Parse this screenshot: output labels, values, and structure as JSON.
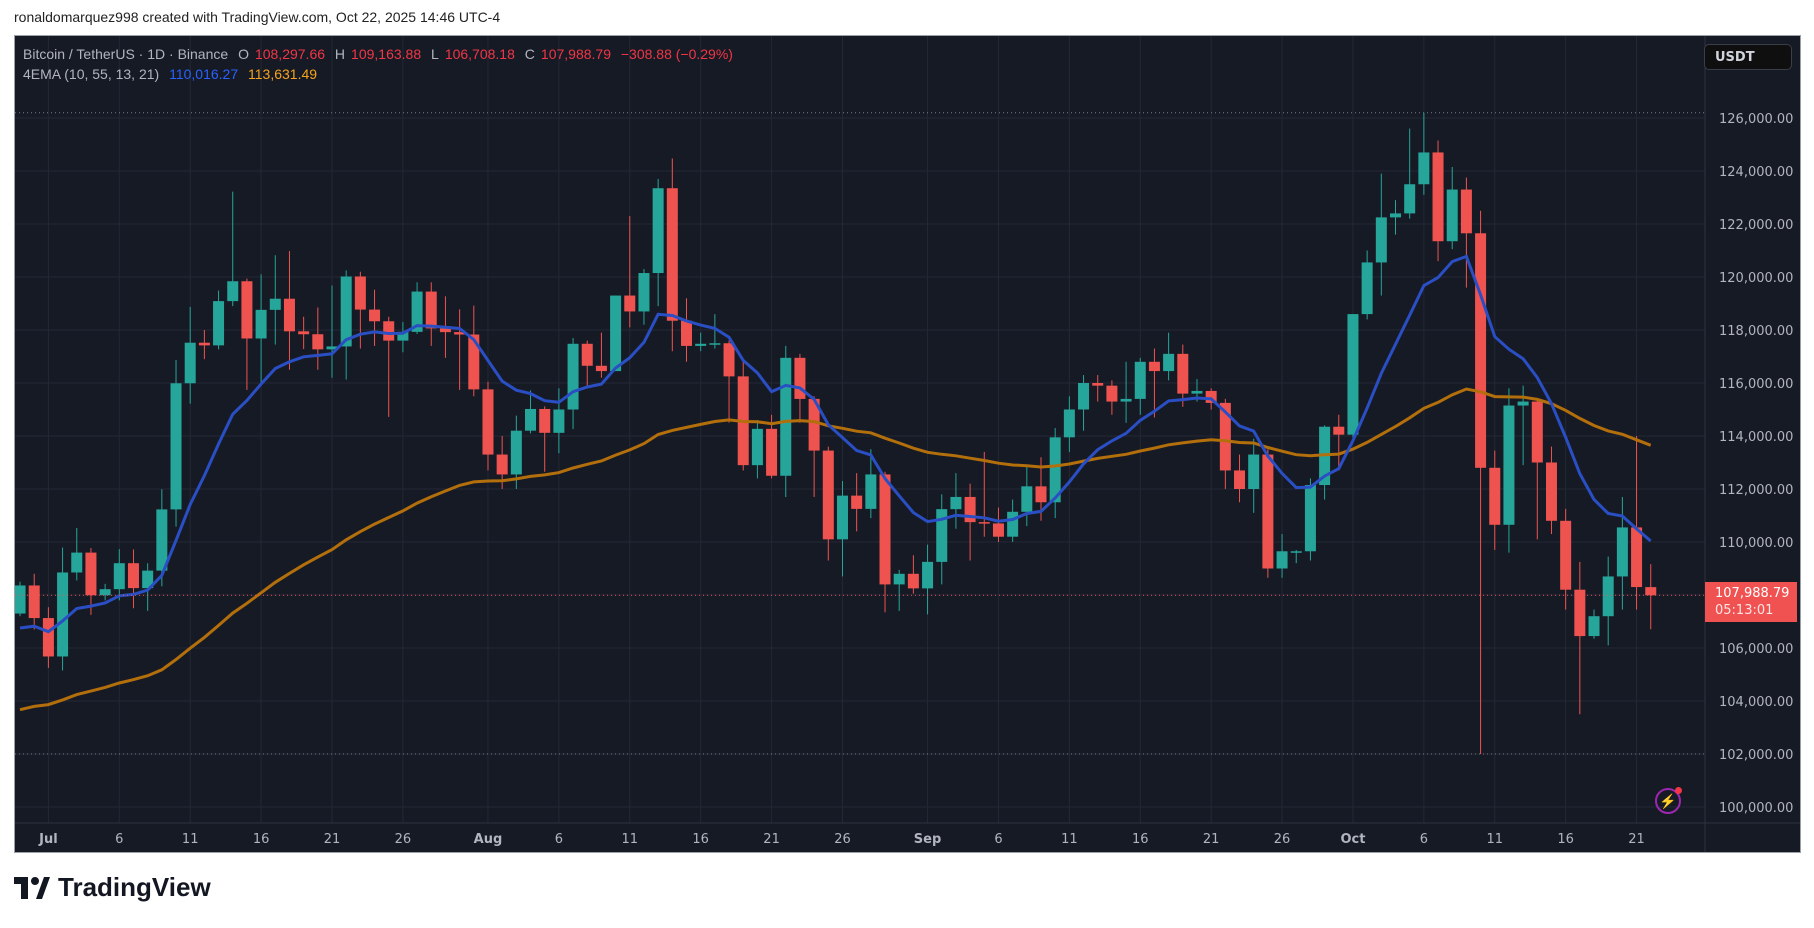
{
  "credit": "ronaldomarquez998 created with TradingView.com, Oct 22, 2025 14:46 UTC-4",
  "legend": {
    "symbol": "Bitcoin / TetherUS · 1D · Binance",
    "o_label": "O",
    "o": "108,297.66",
    "h_label": "H",
    "h": "109,163.88",
    "l_label": "L",
    "l": "106,708.18",
    "c_label": "C",
    "c": "107,988.79",
    "change": "−308.88 (−0.29%)",
    "indicator": "4EMA (10, 55, 13, 21)",
    "ema_fast": "110,016.27",
    "ema_slow": "113,631.49"
  },
  "currency_button": "USDT",
  "last_price": {
    "price": "107,988.79",
    "countdown": "05:13:01"
  },
  "brand": "TradingView",
  "colors": {
    "up": "#26a69a",
    "down": "#ef5350",
    "ema_fast": "#2a4fc4",
    "ema_slow": "#b36f0b",
    "bg": "#161a25"
  },
  "chart_data": {
    "type": "candlestick",
    "title": "Bitcoin / TetherUS · 1D · Binance",
    "ylim": [
      99500,
      127200
    ],
    "y_ticks": [
      "126,000.00",
      "124,000.00",
      "122,000.00",
      "120,000.00",
      "118,000.00",
      "116,000.00",
      "114,000.00",
      "112,000.00",
      "110,000.00",
      "108,000.00",
      "106,000.00",
      "104,000.00",
      "102,000.00",
      "100,000.00"
    ],
    "y_tick_values": [
      126000,
      124000,
      122000,
      120000,
      118000,
      116000,
      114000,
      112000,
      110000,
      108000,
      106000,
      104000,
      102000,
      100000
    ],
    "x_ticks": [
      {
        "label": "Jul",
        "day": 2,
        "bold": true
      },
      {
        "label": "6",
        "day": 7
      },
      {
        "label": "11",
        "day": 12
      },
      {
        "label": "16",
        "day": 17
      },
      {
        "label": "21",
        "day": 22
      },
      {
        "label": "26",
        "day": 27
      },
      {
        "label": "Aug",
        "day": 33,
        "bold": true
      },
      {
        "label": "6",
        "day": 38
      },
      {
        "label": "11",
        "day": 43
      },
      {
        "label": "16",
        "day": 48
      },
      {
        "label": "21",
        "day": 53
      },
      {
        "label": "26",
        "day": 58
      },
      {
        "label": "Sep",
        "day": 64,
        "bold": true
      },
      {
        "label": "6",
        "day": 69
      },
      {
        "label": "11",
        "day": 74
      },
      {
        "label": "16",
        "day": 79
      },
      {
        "label": "21",
        "day": 84
      },
      {
        "label": "26",
        "day": 89
      },
      {
        "label": "Oct",
        "day": 94,
        "bold": true
      },
      {
        "label": "6",
        "day": 99
      },
      {
        "label": "11",
        "day": 104
      },
      {
        "label": "16",
        "day": 109
      },
      {
        "label": "21",
        "day": 114
      }
    ],
    "first_date": "2025-06-29",
    "high_marker": 126200,
    "low_marker": 102000,
    "last_close": 107988.79,
    "ema_fast_seed": 106400,
    "ema_slow_seed": 103500,
    "ema_periods": [
      10,
      55
    ],
    "ohlc": [
      [
        107300,
        108500,
        107200,
        108360
      ],
      [
        108360,
        108800,
        106700,
        107130
      ],
      [
        107130,
        107540,
        105250,
        105680
      ],
      [
        105680,
        109790,
        105150,
        108850
      ],
      [
        108850,
        110530,
        108550,
        109600
      ],
      [
        109600,
        109770,
        107250,
        107990
      ],
      [
        107990,
        108420,
        107800,
        108220
      ],
      [
        108220,
        109730,
        107800,
        109200
      ],
      [
        109200,
        109720,
        107500,
        108260
      ],
      [
        108260,
        109200,
        107400,
        108920
      ],
      [
        108920,
        111990,
        108330,
        111230
      ],
      [
        111230,
        116870,
        110580,
        115990
      ],
      [
        115990,
        118870,
        115220,
        117520
      ],
      [
        117520,
        118000,
        116900,
        117420
      ],
      [
        117420,
        119490,
        117270,
        119090
      ],
      [
        119090,
        123220,
        118900,
        119840
      ],
      [
        119840,
        119940,
        115740,
        117680
      ],
      [
        117680,
        120100,
        115960,
        118760
      ],
      [
        118760,
        120820,
        117450,
        119180
      ],
      [
        119180,
        120980,
        116500,
        117950
      ],
      [
        117950,
        118500,
        117280,
        117840
      ],
      [
        117840,
        118850,
        116500,
        117270
      ],
      [
        117270,
        119680,
        116200,
        117380
      ],
      [
        117380,
        120250,
        116130,
        120020
      ],
      [
        120020,
        120200,
        117300,
        118770
      ],
      [
        118770,
        119520,
        117400,
        118330
      ],
      [
        118330,
        118500,
        114720,
        117600
      ],
      [
        117600,
        118300,
        117160,
        117930
      ],
      [
        117930,
        119800,
        117850,
        119450
      ],
      [
        119450,
        119800,
        117400,
        118060
      ],
      [
        118060,
        119270,
        116950,
        117920
      ],
      [
        117920,
        118780,
        115740,
        117830
      ],
      [
        117830,
        118920,
        115500,
        115760
      ],
      [
        115760,
        116050,
        112700,
        113300
      ],
      [
        113300,
        114000,
        112000,
        112550
      ],
      [
        112550,
        114770,
        112000,
        114200
      ],
      [
        114200,
        115720,
        114100,
        115020
      ],
      [
        115020,
        115120,
        112650,
        114120
      ],
      [
        114120,
        115800,
        113350,
        115000
      ],
      [
        115000,
        117700,
        114260,
        117480
      ],
      [
        117480,
        117600,
        115900,
        116650
      ],
      [
        116650,
        117900,
        116200,
        116450
      ],
      [
        116450,
        119300,
        116450,
        119300
      ],
      [
        119300,
        122300,
        118100,
        118700
      ],
      [
        118700,
        120300,
        118200,
        120150
      ],
      [
        120150,
        123700,
        118900,
        123350
      ],
      [
        123350,
        124470,
        117200,
        118350
      ],
      [
        118350,
        119200,
        116800,
        117400
      ],
      [
        117400,
        117900,
        117200,
        117480
      ],
      [
        117480,
        118600,
        117300,
        117500
      ],
      [
        117500,
        117600,
        114500,
        116250
      ],
      [
        116250,
        116800,
        112700,
        112900
      ],
      [
        112900,
        114600,
        112400,
        114270
      ],
      [
        114270,
        114800,
        112400,
        112500
      ],
      [
        112500,
        117400,
        111700,
        116950
      ],
      [
        116950,
        117100,
        114500,
        115400
      ],
      [
        115400,
        115500,
        111700,
        113450
      ],
      [
        113450,
        113600,
        109300,
        110100
      ],
      [
        110100,
        112300,
        108700,
        111750
      ],
      [
        111750,
        112600,
        110400,
        111250
      ],
      [
        111250,
        113500,
        110900,
        112550
      ],
      [
        112550,
        112650,
        107350,
        108400
      ],
      [
        108400,
        108950,
        107400,
        108800
      ],
      [
        108800,
        109500,
        108050,
        108250
      ],
      [
        108250,
        109900,
        107270,
        109250
      ],
      [
        109250,
        111800,
        108400,
        111240
      ],
      [
        111240,
        112600,
        110500,
        111700
      ],
      [
        111700,
        112200,
        109300,
        110750
      ],
      [
        110750,
        113400,
        110200,
        110700
      ],
      [
        110700,
        111300,
        110000,
        110200
      ],
      [
        110200,
        111600,
        110000,
        111140
      ],
      [
        111140,
        112900,
        110600,
        112100
      ],
      [
        112100,
        113200,
        110800,
        111500
      ],
      [
        111500,
        114300,
        110900,
        113950
      ],
      [
        113950,
        115500,
        113400,
        115000
      ],
      [
        115000,
        116300,
        114200,
        116000
      ],
      [
        116000,
        116300,
        115300,
        115900
      ],
      [
        115900,
        116100,
        114800,
        115300
      ],
      [
        115300,
        116800,
        114500,
        115400
      ],
      [
        115400,
        116950,
        114800,
        116800
      ],
      [
        116800,
        117300,
        114700,
        116450
      ],
      [
        116450,
        117900,
        116100,
        117100
      ],
      [
        117100,
        117450,
        115100,
        115600
      ],
      [
        115600,
        116150,
        115300,
        115700
      ],
      [
        115700,
        115800,
        115000,
        115250
      ],
      [
        115250,
        115400,
        112000,
        112700
      ],
      [
        112700,
        113300,
        111500,
        112000
      ],
      [
        112000,
        113900,
        111100,
        113300
      ],
      [
        113300,
        113500,
        108650,
        109000
      ],
      [
        109000,
        110300,
        108650,
        109650
      ],
      [
        109650,
        109700,
        109200,
        109650
      ],
      [
        109650,
        112400,
        109300,
        112150
      ],
      [
        112150,
        114400,
        111600,
        114350
      ],
      [
        114350,
        114800,
        112700,
        114050
      ],
      [
        114050,
        118600,
        113950,
        118600
      ],
      [
        118600,
        121000,
        118400,
        120550
      ],
      [
        120550,
        123900,
        119300,
        122250
      ],
      [
        122250,
        122900,
        121600,
        122400
      ],
      [
        122400,
        125600,
        122200,
        123500
      ],
      [
        123500,
        126200,
        123100,
        124700
      ],
      [
        124700,
        125150,
        120600,
        121350
      ],
      [
        121350,
        124150,
        121050,
        123300
      ],
      [
        123300,
        123750,
        119600,
        121650
      ],
      [
        121650,
        122500,
        102000,
        112800
      ],
      [
        112800,
        113450,
        109700,
        110650
      ],
      [
        110650,
        115800,
        109600,
        115150
      ],
      [
        115150,
        115900,
        112900,
        115300
      ],
      [
        115300,
        115400,
        110100,
        113000
      ],
      [
        113000,
        113600,
        110300,
        110800
      ],
      [
        110800,
        111250,
        107450,
        108200
      ],
      [
        108200,
        109250,
        103500,
        106450
      ],
      [
        106450,
        107450,
        106350,
        107200
      ],
      [
        107200,
        109450,
        106100,
        108700
      ],
      [
        108700,
        111700,
        107450,
        110550
      ],
      [
        110550,
        114000,
        107450,
        108300
      ],
      [
        108297.66,
        109163.88,
        106708.18,
        107988.79
      ]
    ]
  }
}
